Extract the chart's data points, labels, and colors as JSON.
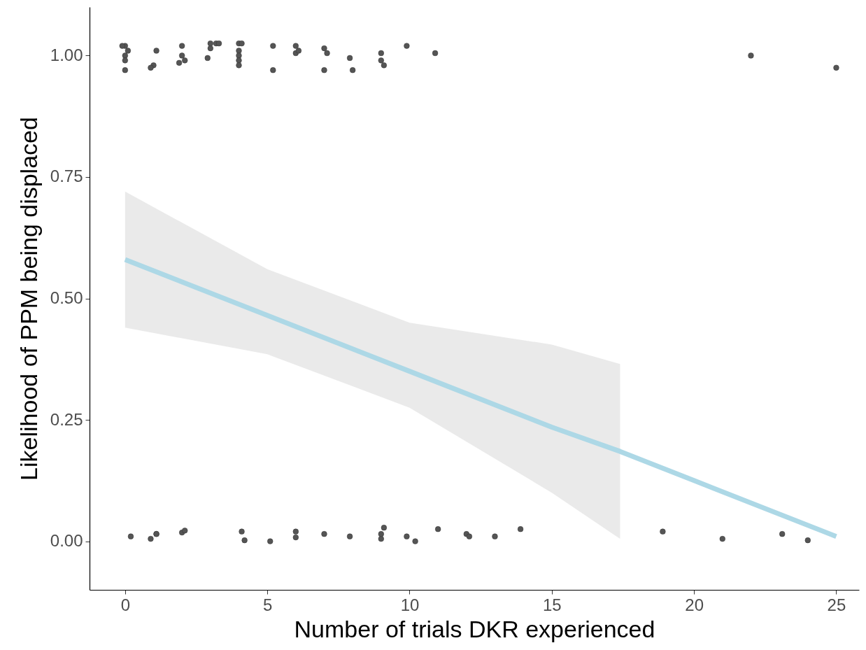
{
  "chart_data": {
    "type": "scatter",
    "xlabel": "Number of trials DKR experienced",
    "ylabel": "Likelihood of PPM being displaced",
    "xlim": [
      -1.25,
      25.8
    ],
    "ylim": [
      -0.1,
      1.1
    ],
    "xticks": [
      0,
      5,
      10,
      15,
      20,
      25
    ],
    "yticks": [
      {
        "value": 0,
        "label": "0.00"
      },
      {
        "value": 0.25,
        "label": "0.25"
      },
      {
        "value": 0.5,
        "label": "0.50"
      },
      {
        "value": 0.75,
        "label": "0.75"
      },
      {
        "value": 1,
        "label": "1.00"
      }
    ],
    "grid": false,
    "series": [
      {
        "color": "#555555",
        "marker": "circle",
        "x": [
          0,
          -0.1,
          0,
          0,
          0.1,
          0,
          1,
          0.9,
          1.1,
          2,
          2,
          1.9,
          2.1,
          3,
          3,
          3.2,
          3.3,
          2.9,
          4,
          4.1,
          4,
          4,
          4,
          4,
          5.2,
          5.2,
          6,
          6,
          6.1,
          7,
          7.1,
          7,
          8,
          7.9,
          9,
          9,
          9.1,
          9.9,
          10.9,
          22,
          25,
          0.2,
          0.9,
          1.1,
          1.1,
          2,
          2.1,
          4.1,
          4.2,
          5.1,
          6,
          6,
          7,
          7.9,
          9,
          9,
          9.1,
          9.9,
          10.2,
          11,
          12,
          12.1,
          13,
          13.9,
          18.9,
          21,
          23.1,
          24
        ],
        "values": [
          1.02,
          1.02,
          1,
          0.99,
          1.01,
          0.97,
          0.98,
          0.975,
          1.01,
          1.02,
          1,
          0.985,
          0.99,
          1.015,
          1.025,
          1.025,
          1.025,
          0.995,
          1.025,
          1.025,
          1.01,
          1,
          0.99,
          0.98,
          1.02,
          0.97,
          1.005,
          1.02,
          1.01,
          1.015,
          1.005,
          0.97,
          0.97,
          0.995,
          0.99,
          1.005,
          0.98,
          1.02,
          1.005,
          1,
          0.975,
          0.01,
          0.005,
          0.015,
          0.015,
          0.018,
          0.022,
          0.02,
          0.002,
          0,
          0.02,
          0.008,
          0.015,
          0.01,
          0.005,
          0.015,
          0.028,
          0.01,
          0,
          0.025,
          0.015,
          0.01,
          0.01,
          0.025,
          0.02,
          0.005,
          0.015,
          0.002
        ]
      },
      {
        "type": "line",
        "color": "#add8e6",
        "line_style": "solid",
        "x": [
          0,
          5,
          10,
          15,
          17.4,
          20,
          25
        ],
        "values": [
          0.58,
          0.465,
          0.35,
          0.235,
          0.185,
          0.125,
          0.01
        ],
        "lower": [
          0.44,
          0.385,
          0.275,
          0.1,
          0.005,
          null,
          null
        ],
        "upper": [
          0.72,
          0.56,
          0.45,
          0.405,
          0.365,
          null,
          null
        ]
      }
    ]
  }
}
